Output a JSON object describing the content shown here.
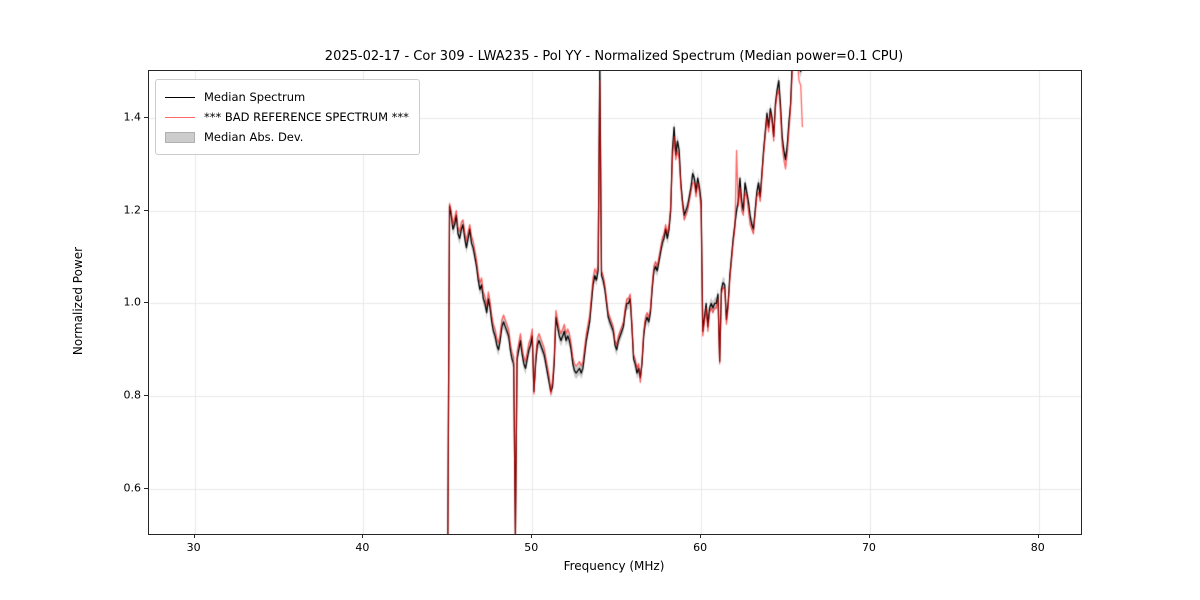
{
  "figure": {
    "title": "2025-02-17 - Cor 309 - LWA235 - Pol YY - Normalized Spectrum (Median power=0.1 CPU)",
    "xlabel": "Frequency (MHz)",
    "ylabel": "Normalized Power",
    "background_color": "#ffffff"
  },
  "axes": {
    "xlim": [
      27.3,
      82.5
    ],
    "ylim": [
      0.503,
      1.501
    ],
    "xticks": [
      30,
      40,
      50,
      60,
      70,
      80
    ],
    "xtick_labels": [
      "30",
      "40",
      "50",
      "60",
      "70",
      "80"
    ],
    "yticks": [
      0.6,
      0.8,
      1.0,
      1.2,
      1.4
    ],
    "ytick_labels": [
      "0.6",
      "0.8",
      "1.0",
      "1.2",
      "1.4"
    ],
    "grid_color": "#e8e8e8",
    "spine_color": "#262626"
  },
  "legend": {
    "items": [
      {
        "label": "Median Spectrum",
        "type": "line",
        "color": "#000000"
      },
      {
        "label": "*** BAD REFERENCE SPECTRUM ***",
        "type": "line",
        "color": "#ff6666"
      },
      {
        "label": "Median Abs. Dev.",
        "type": "patch",
        "color": "#cccccc",
        "edge_color": "#b0b0b0"
      }
    ]
  },
  "chart_data": {
    "type": "line",
    "title": "2025-02-17 - Cor 309 - LWA235 - Pol YY - Normalized Spectrum (Median power=0.1 CPU)",
    "xlabel": "Frequency (MHz)",
    "ylabel": "Normalized Power",
    "xlim": [
      27.3,
      82.5
    ],
    "ylim": [
      0.503,
      1.501
    ],
    "grid": true,
    "legend_position": "upper left",
    "x_start": 45.0,
    "x_step": 0.1,
    "x_end": 66.0,
    "clip_note": "values 0.50 and 1.52 are spikes clipped by the axes (dips at 45 and 49 MHz reach below plot, spike at 54 MHz and region 65.4-66 MHz reach above plot)",
    "series": [
      {
        "name": "Median Spectrum",
        "color": "#000000",
        "line_width": 1.3,
        "values": [
          0.5,
          1.21,
          1.19,
          1.16,
          1.17,
          1.19,
          1.15,
          1.14,
          1.16,
          1.17,
          1.14,
          1.12,
          1.14,
          1.16,
          1.13,
          1.12,
          1.1,
          1.08,
          1.05,
          1.03,
          1.04,
          1.01,
          1.0,
          0.98,
          1.01,
          0.99,
          0.96,
          0.94,
          0.93,
          0.91,
          0.9,
          0.92,
          0.95,
          0.96,
          0.95,
          0.94,
          0.93,
          0.9,
          0.88,
          0.87,
          0.5,
          0.88,
          0.9,
          0.92,
          0.89,
          0.87,
          0.86,
          0.88,
          0.9,
          0.91,
          0.93,
          0.81,
          0.87,
          0.91,
          0.92,
          0.91,
          0.9,
          0.89,
          0.87,
          0.85,
          0.83,
          0.81,
          0.82,
          0.87,
          0.97,
          0.95,
          0.93,
          0.92,
          0.93,
          0.94,
          0.92,
          0.93,
          0.92,
          0.9,
          0.87,
          0.855,
          0.85,
          0.855,
          0.86,
          0.85,
          0.86,
          0.89,
          0.92,
          0.94,
          0.96,
          1.0,
          1.04,
          1.06,
          1.05,
          1.07,
          1.52,
          1.06,
          1.05,
          1.03,
          1.0,
          0.97,
          0.96,
          0.95,
          0.94,
          0.91,
          0.9,
          0.92,
          0.93,
          0.94,
          0.95,
          0.98,
          1.0,
          1.0,
          1.01,
          0.95,
          0.88,
          0.87,
          0.85,
          0.86,
          0.84,
          0.87,
          0.93,
          0.96,
          0.97,
          0.96,
          0.98,
          1.03,
          1.07,
          1.08,
          1.07,
          1.09,
          1.11,
          1.13,
          1.14,
          1.16,
          1.14,
          1.16,
          1.2,
          1.33,
          1.38,
          1.32,
          1.35,
          1.33,
          1.26,
          1.22,
          1.19,
          1.2,
          1.21,
          1.23,
          1.25,
          1.28,
          1.27,
          1.24,
          1.27,
          1.25,
          1.22,
          0.94,
          0.97,
          1.0,
          0.95,
          0.99,
          1.0,
          0.99,
          1.0,
          1.0,
          1.02,
          0.875,
          1.03,
          1.045,
          1.04,
          0.965,
          1.0,
          1.06,
          1.1,
          1.14,
          1.17,
          1.2,
          1.22,
          1.27,
          1.22,
          1.2,
          1.26,
          1.24,
          1.22,
          1.19,
          1.17,
          1.16,
          1.2,
          1.24,
          1.26,
          1.23,
          1.28,
          1.33,
          1.37,
          1.41,
          1.38,
          1.42,
          1.4,
          1.36,
          1.43,
          1.46,
          1.48,
          1.43,
          1.36,
          1.33,
          1.31,
          1.34,
          1.39,
          1.43,
          1.52,
          1.52,
          1.52,
          1.52,
          1.51,
          1.5,
          1.52
        ]
      },
      {
        "name": "*** BAD REFERENCE SPECTRUM ***",
        "color": "rgba(255,0,0,0.6)",
        "line_width": 1.3,
        "values": [
          0.5,
          1.215,
          1.2,
          1.17,
          1.185,
          1.2,
          1.165,
          1.155,
          1.175,
          1.18,
          1.155,
          1.135,
          1.155,
          1.17,
          1.145,
          1.135,
          1.115,
          1.095,
          1.065,
          1.045,
          1.055,
          1.025,
          1.015,
          0.995,
          1.025,
          1.005,
          0.975,
          0.955,
          0.945,
          0.925,
          0.915,
          0.935,
          0.965,
          0.975,
          0.965,
          0.955,
          0.945,
          0.915,
          0.895,
          0.885,
          0.5,
          0.895,
          0.915,
          0.935,
          0.905,
          0.885,
          0.875,
          0.895,
          0.915,
          0.925,
          0.945,
          0.805,
          0.885,
          0.925,
          0.935,
          0.925,
          0.915,
          0.905,
          0.885,
          0.865,
          0.845,
          0.805,
          0.835,
          0.885,
          0.985,
          0.965,
          0.945,
          0.935,
          0.945,
          0.955,
          0.935,
          0.945,
          0.935,
          0.915,
          0.885,
          0.87,
          0.865,
          0.87,
          0.875,
          0.865,
          0.875,
          0.905,
          0.935,
          0.955,
          0.975,
          1.015,
          1.055,
          1.075,
          1.065,
          1.085,
          1.48,
          1.07,
          1.06,
          1.04,
          1.01,
          0.98,
          0.97,
          0.96,
          0.95,
          0.92,
          0.91,
          0.93,
          0.94,
          0.95,
          0.96,
          0.99,
          1.01,
          1.01,
          1.02,
          0.96,
          0.89,
          0.88,
          0.86,
          0.87,
          0.83,
          0.88,
          0.94,
          0.97,
          0.98,
          0.97,
          0.99,
          1.04,
          1.08,
          1.09,
          1.08,
          1.1,
          1.12,
          1.14,
          1.15,
          1.17,
          1.15,
          1.17,
          1.21,
          1.31,
          1.36,
          1.31,
          1.33,
          1.31,
          1.25,
          1.21,
          1.18,
          1.19,
          1.2,
          1.22,
          1.24,
          1.26,
          1.26,
          1.23,
          1.26,
          1.24,
          1.2,
          0.93,
          0.96,
          0.99,
          0.94,
          0.98,
          0.99,
          0.98,
          0.99,
          0.99,
          1.01,
          0.87,
          1.02,
          1.035,
          1.03,
          0.955,
          0.99,
          1.05,
          1.09,
          1.13,
          1.16,
          1.33,
          1.21,
          1.25,
          1.2,
          1.19,
          1.24,
          1.23,
          1.2,
          1.17,
          1.16,
          1.15,
          1.19,
          1.23,
          1.24,
          1.22,
          1.27,
          1.32,
          1.36,
          1.4,
          1.37,
          1.41,
          1.39,
          1.35,
          1.42,
          1.45,
          1.46,
          1.41,
          1.34,
          1.31,
          1.29,
          1.32,
          1.37,
          1.42,
          1.5,
          1.52,
          1.52,
          1.52,
          1.48,
          1.47,
          1.38
        ]
      },
      {
        "name": "Median Abs. Dev.",
        "type": "band_around_median",
        "band_halfwidth": 0.013,
        "color": "rgba(140,140,140,0.45)"
      }
    ]
  }
}
